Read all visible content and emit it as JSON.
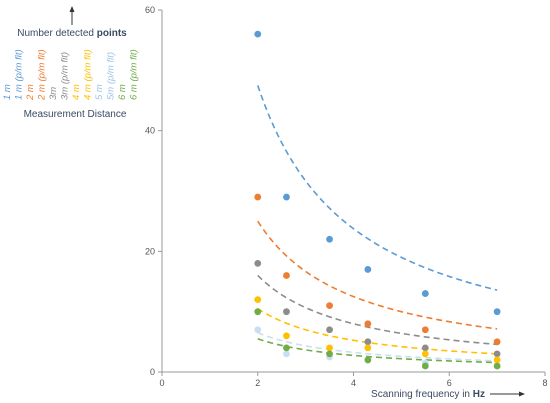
{
  "chart_data": {
    "type": "scatter",
    "title": "",
    "ylabel_parts": [
      "Number detected ",
      "points"
    ],
    "xlabel_parts": [
      "Scanning frequency in ",
      "Hz"
    ],
    "xlim": [
      0,
      8
    ],
    "ylim": [
      0,
      60
    ],
    "xticks": [
      0,
      2,
      4,
      6,
      8
    ],
    "yticks": [
      0,
      20,
      40,
      60
    ],
    "grid": false,
    "legend_title": "Measurement Distance",
    "legend_placement": "left",
    "legend_entries": [
      {
        "label": "1 m",
        "color": "#5b9bd5"
      },
      {
        "label": "1 m (p/m fit)",
        "color": "#5b9bd5"
      },
      {
        "label": "2 m",
        "color": "#ed7d31"
      },
      {
        "label": "2 m (p/m fit)",
        "color": "#ed7d31"
      },
      {
        "label": "3m",
        "color": "#8c8c8c"
      },
      {
        "label": "3m (p/m fit)",
        "color": "#8c8c8c"
      },
      {
        "label": "4 m",
        "color": "#ffc000"
      },
      {
        "label": "4 m (p/m fit)",
        "color": "#ffc000"
      },
      {
        "label": "5 m",
        "color": "#9dc3e6"
      },
      {
        "label": "5m (p/m fit)",
        "color": "#9dc3e6"
      },
      {
        "label": "6 m",
        "color": "#70ad47"
      },
      {
        "label": "6 m (p/m fit)",
        "color": "#70ad47"
      }
    ],
    "series": [
      {
        "name": "1 m",
        "color": "#5b9bd5",
        "x": [
          2,
          2.6,
          3.5,
          4.3,
          5.5,
          7
        ],
        "y": [
          56,
          29,
          22,
          17,
          13,
          10
        ],
        "fit_k": 95
      },
      {
        "name": "2 m",
        "color": "#ed7d31",
        "x": [
          2,
          2.6,
          3.5,
          4.3,
          5.5,
          7
        ],
        "y": [
          29,
          16,
          11,
          8,
          7,
          5
        ],
        "fit_k": 50
      },
      {
        "name": "3m",
        "color": "#8c8c8c",
        "x": [
          2,
          2.6,
          3.5,
          4.3,
          5.5,
          7
        ],
        "y": [
          18,
          10,
          7,
          5,
          4,
          3
        ],
        "fit_k": 32
      },
      {
        "name": "4 m",
        "color": "#ffc000",
        "x": [
          2,
          2.6,
          3.5,
          4.3,
          5.5,
          7
        ],
        "y": [
          12,
          6,
          4,
          4,
          3,
          2
        ],
        "fit_k": 21
      },
      {
        "name": "5 m",
        "color": "#c9def2",
        "x": [
          2,
          2.6,
          3.5,
          4.3,
          5.5,
          7
        ],
        "y": [
          7,
          3,
          2.5,
          2,
          1.5,
          1
        ],
        "fit_k": 13
      },
      {
        "name": "6 m",
        "color": "#70ad47",
        "x": [
          2,
          2.6,
          3.5,
          4.3,
          5.5,
          7
        ],
        "y": [
          10,
          4,
          3,
          2,
          1,
          1
        ],
        "fit_k": 11
      }
    ]
  }
}
